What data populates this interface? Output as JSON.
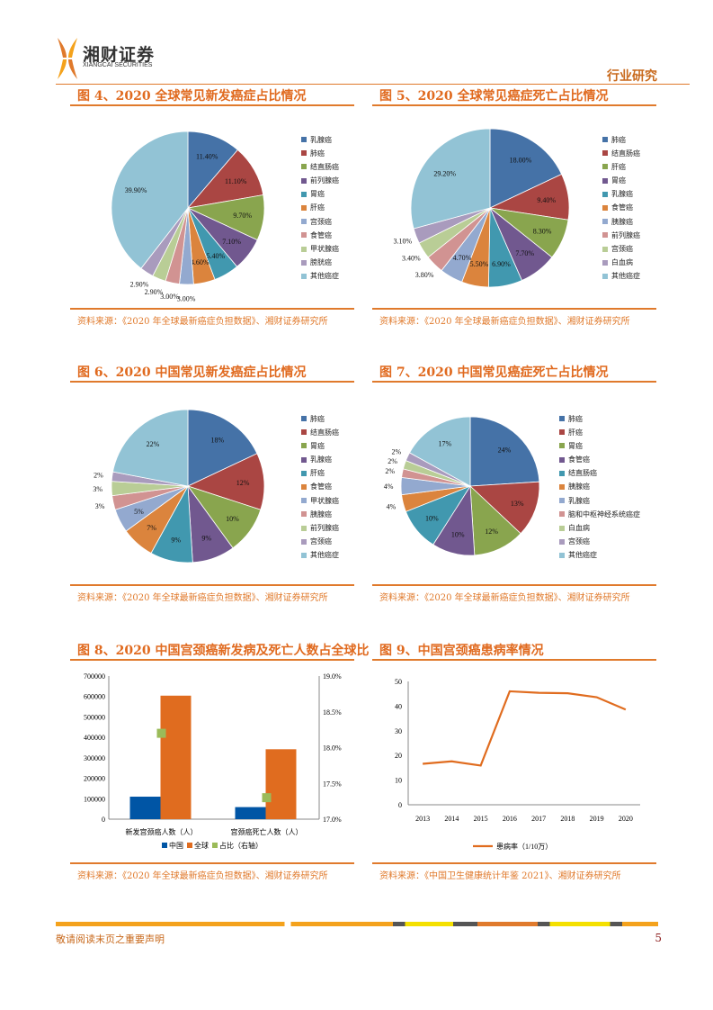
{
  "header": {
    "logo_cn": "湘财证券",
    "logo_en": "XIANGCAI SECURITIES",
    "section": "行业研究"
  },
  "colors": [
    "#4572A7",
    "#AA4643",
    "#89A54E",
    "#71588F",
    "#4198AF",
    "#DB843D",
    "#93A9CF",
    "#D19392",
    "#B9CD96",
    "#A99BBD",
    "#92C3D5"
  ],
  "figures": [
    {
      "title": "图 4、2020 全球常见新发癌症占比情况",
      "source": "资料来源：《2020 年全球最新癌症负担数据》、湘财证券研究所"
    },
    {
      "title": "图 5、2020 全球常见癌症死亡占比情况",
      "source": "资料来源：《2020 年全球最新癌症负担数据》、湘财证券研究所"
    },
    {
      "title": "图 6、2020 中国常见新发癌症占比情况",
      "source": "资料来源：《2020 年全球最新癌症负担数据》、湘财证券研究所"
    },
    {
      "title": "图 7、2020 中国常见癌症死亡占比情况",
      "source": "资料来源：《2020 年全球最新癌症负担数据》、湘财证券研究所"
    },
    {
      "title": "图 8、2020 中国宫颈癌新发病及死亡人数占全球比",
      "source": "资料来源：《2020 年全球最新癌症负担数据》、湘财证券研究所"
    },
    {
      "title": "图 9、中国宫颈癌患病率情况",
      "source": "资料来源：《中国卫生健康统计年鉴 2021》、湘财证券研究所"
    }
  ],
  "chart_data": [
    {
      "type": "pie",
      "categories": [
        "乳腺癌",
        "肺癌",
        "结直肠癌",
        "前列腺癌",
        "胃癌",
        "肝癌",
        "宫颈癌",
        "食管癌",
        "甲状腺癌",
        "膀胱癌",
        "其他癌症"
      ],
      "values": [
        11.4,
        11.1,
        9.7,
        7.1,
        5.4,
        4.6,
        3.0,
        3.0,
        2.9,
        2.9,
        39.9
      ],
      "labels": [
        "11.40%",
        "11.10%",
        "9.70%",
        "7.10%",
        "5.40%",
        "4.60%",
        "3.00%",
        "3.00%",
        "2.90%",
        "2.90%",
        "39.90%"
      ],
      "legend": "right"
    },
    {
      "type": "pie",
      "categories": [
        "肺癌",
        "结直肠癌",
        "肝癌",
        "胃癌",
        "乳腺癌",
        "食管癌",
        "胰腺癌",
        "前列腺癌",
        "宫颈癌",
        "白血病",
        "其他癌症"
      ],
      "values": [
        18.0,
        9.4,
        8.3,
        7.7,
        6.9,
        5.5,
        4.7,
        3.8,
        3.4,
        3.1,
        29.2
      ],
      "labels": [
        "18.00%",
        "9.40%",
        "8.30%",
        "7.70%",
        "6.90%",
        "5.50%",
        "4.70%",
        "3.80%",
        "3.40%",
        "3.10%",
        "29.20%"
      ],
      "legend": "right"
    },
    {
      "type": "pie",
      "categories": [
        "肺癌",
        "结直肠癌",
        "胃癌",
        "乳腺癌",
        "肝癌",
        "食管癌",
        "甲状腺癌",
        "胰腺癌",
        "前列腺癌",
        "宫颈癌",
        "其他癌症"
      ],
      "values": [
        18,
        12,
        10,
        9,
        9,
        7,
        5,
        3,
        3,
        2,
        22
      ],
      "labels": [
        "18%",
        "12%",
        "10%",
        "9%",
        "9%",
        "7%",
        "5%",
        "3%",
        "3%",
        "2%",
        "22%"
      ],
      "legend": "right"
    },
    {
      "type": "pie",
      "categories": [
        "肺癌",
        "肝癌",
        "胃癌",
        "食管癌",
        "结直肠癌",
        "胰腺癌",
        "乳腺癌",
        "脑和中枢神经系统癌症",
        "白血病",
        "宫颈癌",
        "其他癌症"
      ],
      "values": [
        24,
        13,
        12,
        10,
        10,
        4,
        4,
        2,
        2,
        2,
        17
      ],
      "labels": [
        "24%",
        "13%",
        "12%",
        "10%",
        "10%",
        "4%",
        "4%",
        "2%",
        "2%",
        "2%",
        "17%"
      ],
      "legend": "right"
    },
    {
      "type": "bar",
      "categories": [
        "新发宫颈癌人数（人）",
        "宫颈癌死亡人数（人）"
      ],
      "series": [
        {
          "name": "中国",
          "values": [
            110000,
            59000
          ],
          "color": "#0055A5"
        },
        {
          "name": "全球",
          "values": [
            604000,
            342000
          ],
          "color": "#E06C1F"
        },
        {
          "name": "占比（右轴）",
          "values": [
            18.2,
            17.3
          ],
          "axis": "right",
          "type": "marker",
          "color": "#9BBB59"
        }
      ],
      "ylim": [
        0,
        700000
      ],
      "yticks": [
        "0",
        "100000",
        "200000",
        "300000",
        "400000",
        "500000",
        "600000",
        "700000"
      ],
      "y2lim": [
        17.0,
        19.0
      ],
      "y2ticks": [
        "17.0%",
        "17.5%",
        "18.0%",
        "18.5%",
        "19.0%"
      ],
      "legend": "bottom"
    },
    {
      "type": "line",
      "x": [
        "2013",
        "2014",
        "2015",
        "2016",
        "2017",
        "2018",
        "2019",
        "2020"
      ],
      "series": [
        {
          "name": "患病率（1/10万）",
          "values": [
            16.6,
            17.6,
            15.9,
            46.0,
            45.4,
            45.2,
            43.6,
            38.6
          ],
          "color": "#E06C1F"
        }
      ],
      "ylim": [
        0,
        50
      ],
      "yticks": [
        "0",
        "10",
        "20",
        "30",
        "40",
        "50"
      ],
      "legend": "bottom"
    }
  ],
  "footer": {
    "disclaimer": "敬请阅读末页之重要声明",
    "page": "5"
  }
}
